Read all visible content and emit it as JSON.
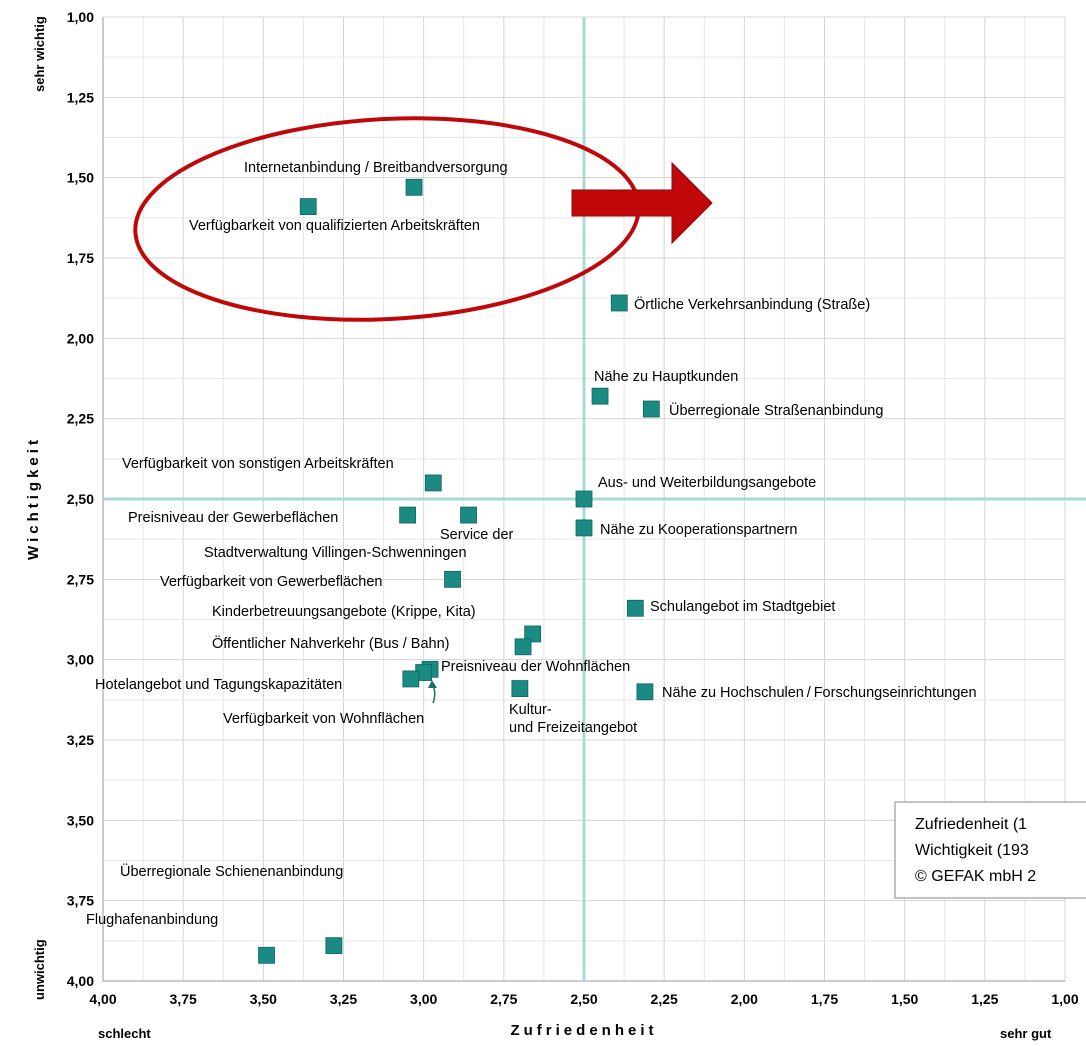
{
  "chart_data": {
    "type": "scatter",
    "title": "",
    "xlabel": "Zufriedenheit",
    "ylabel": "Wichtigkeit",
    "xlim": [
      4.0,
      1.0
    ],
    "ylim": [
      4.0,
      1.0
    ],
    "x_reversed": true,
    "y_reversed": true,
    "grid": true,
    "x_ticks": [
      "4,00",
      "3,75",
      "3,50",
      "3,25",
      "3,00",
      "2,75",
      "2,50",
      "2,25",
      "2,00",
      "1,75",
      "1,50",
      "1,25",
      "1,00"
    ],
    "y_ticks": [
      "1,00",
      "1,25",
      "1,50",
      "1,75",
      "2,00",
      "2,25",
      "2,50",
      "2,75",
      "3,00",
      "3,25",
      "3,50",
      "3,75",
      "4,00"
    ],
    "x_end_labels": {
      "left": "schlecht",
      "right": "sehr gut"
    },
    "y_end_labels": {
      "top": "sehr wichtig",
      "bottom": "unwichtig"
    },
    "reference_lines": {
      "x": 2.5,
      "y": 2.5
    },
    "marker_color": "#1a8a82",
    "reference_line_color": "#a8d8d8",
    "highlight_color": "#c0080a",
    "points": [
      {
        "label": "Internetanbindung / Breitbandversorgung",
        "x": 3.03,
        "y": 1.53
      },
      {
        "label": "Verfügbarkeit von qualifizierten Arbeitskräften",
        "x": 3.36,
        "y": 1.59
      },
      {
        "label": "Örtliche Verkehrsanbindung (Straße)",
        "x": 2.39,
        "y": 1.89
      },
      {
        "label": "Nähe zu Hauptkunden",
        "x": 2.45,
        "y": 2.18
      },
      {
        "label": "Überregionale Straßenanbindung",
        "x": 2.29,
        "y": 2.22
      },
      {
        "label": "Verfügbarkeit von sonstigen Arbeitskräften",
        "x": 2.97,
        "y": 2.45
      },
      {
        "label": "Aus- und Weiterbildungsangebote",
        "x": 2.5,
        "y": 2.5
      },
      {
        "label": "Preisniveau der Gewerbeflächen",
        "x": 3.05,
        "y": 2.55
      },
      {
        "label": "Service der Stadtverwaltung Villingen-Schwenningen",
        "x": 2.86,
        "y": 2.55
      },
      {
        "label": "Nähe zu Kooperationspartnern",
        "x": 2.5,
        "y": 2.59
      },
      {
        "label": "Verfügbarkeit von Gewerbeflächen",
        "x": 2.91,
        "y": 2.75
      },
      {
        "label": "Schulangebot im Stadtgebiet",
        "x": 2.34,
        "y": 2.84
      },
      {
        "label": "Kinderbetreuungsangebote (Krippe, Kita)",
        "x": 2.66,
        "y": 2.92
      },
      {
        "label": "Öffentlicher Nahverkehr (Bus / Bahn)",
        "x": 2.69,
        "y": 2.96
      },
      {
        "label": "Preisniveau der Wohnflächen",
        "x": 2.98,
        "y": 3.03
      },
      {
        "label": "Verfügbarkeit von Wohnflächen",
        "x": 3.0,
        "y": 3.04
      },
      {
        "label": "Hotelangebot und Tagungskapazitäten",
        "x": 3.04,
        "y": 3.06
      },
      {
        "label": "Kultur- und Freizeitangebot",
        "x": 2.7,
        "y": 3.09
      },
      {
        "label": "Nähe zu Hochschulen / Forschungseinrichtungen",
        "x": 2.31,
        "y": 3.1
      },
      {
        "label": "Überregionale Schienenanbindung",
        "x": 3.28,
        "y": 3.89
      },
      {
        "label": "Flughafenanbindung",
        "x": 3.49,
        "y": 3.92
      }
    ],
    "info_box": {
      "lines": [
        "Zufriedenheit (1",
        "Wichtigkeit (193",
        "© GEFAK mbH 2"
      ]
    }
  }
}
